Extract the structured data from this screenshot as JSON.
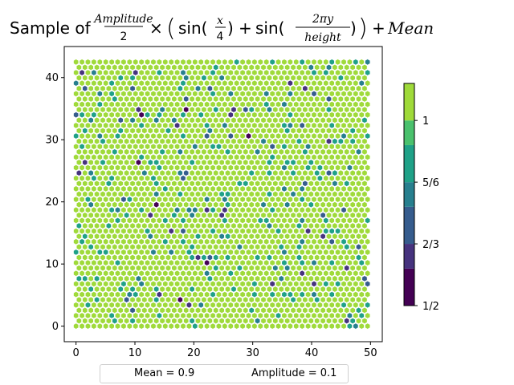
{
  "title": {
    "prefix": "Sample of",
    "frac1_num": "Amplitude",
    "frac1_den": "2",
    "times": "×",
    "sin1": "sin(",
    "frac2_num": "x",
    "frac2_den": "4",
    "sin1_close": ")",
    "plus": "+",
    "sin2": "sin(",
    "frac3_num": "2πy",
    "frac3_den": "height",
    "sin2_close": ")",
    "paren_open": "(",
    "paren_close": ")",
    "mean": "Mean"
  },
  "chart_data": {
    "type": "hexbin",
    "xlim": [
      -2,
      52
    ],
    "ylim": [
      -2.5,
      45
    ],
    "xticks": [
      "0",
      "10",
      "20",
      "30",
      "40",
      "50"
    ],
    "yticks": [
      "0",
      "10",
      "20",
      "30",
      "40"
    ],
    "colorbar": {
      "ticks": [
        "1/2",
        "2/3",
        "5/6",
        "1"
      ],
      "range": [
        0.5,
        1.1
      ],
      "levels": [
        0.5,
        0.6,
        0.6667,
        0.7667,
        0.8333,
        0.9333,
        1.0,
        1.1
      ],
      "colors": [
        "#440154",
        "#46337e",
        "#365c8d",
        "#277f8e",
        "#1fa187",
        "#4ac16d",
        "#9fda3a",
        "#fde725"
      ]
    },
    "grid": false,
    "mean": 0.9,
    "amplitude": 0.1,
    "x_range": [
      0,
      49.5
    ],
    "y_range": [
      0,
      42.5
    ],
    "hex_cols": 50,
    "hex_rows": 51,
    "outlier_fraction": 0.12
  },
  "legend": {
    "mean_label": "Mean = 0.9",
    "amplitude_label": "Amplitude = 0.1"
  }
}
